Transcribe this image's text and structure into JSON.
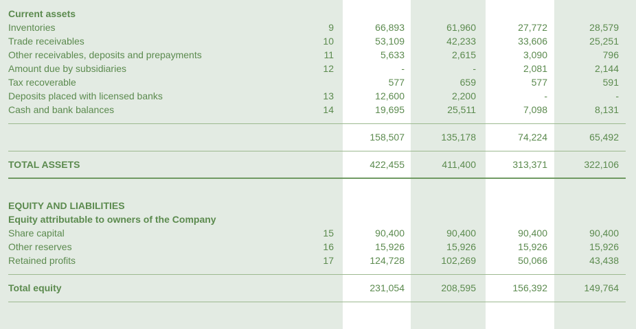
{
  "current_assets": {
    "heading": "Current assets",
    "rows": [
      {
        "label": "Inventories",
        "note": "9",
        "values": [
          "66,893",
          "61,960",
          "27,772",
          "28,579"
        ]
      },
      {
        "label": "Trade receivables",
        "note": "10",
        "values": [
          "53,109",
          "42,233",
          "33,606",
          "25,251"
        ]
      },
      {
        "label": "Other receivables, deposits and prepayments",
        "note": "11",
        "values": [
          "5,633",
          "2,615",
          "3,090",
          "796"
        ]
      },
      {
        "label": "Amount due by subsidiaries",
        "note": "12",
        "values": [
          "-",
          "-",
          "2,081",
          "2,144"
        ]
      },
      {
        "label": "Tax recoverable",
        "note": "",
        "values": [
          "577",
          "659",
          "577",
          "591"
        ]
      },
      {
        "label": "Deposits placed with licensed banks",
        "note": "13",
        "values": [
          "12,600",
          "2,200",
          "-",
          "-"
        ]
      },
      {
        "label": "Cash and bank balances",
        "note": "14",
        "values": [
          "19,695",
          "25,511",
          "7,098",
          "8,131"
        ]
      }
    ],
    "subtotal": [
      "158,507",
      "135,178",
      "74,224",
      "65,492"
    ]
  },
  "total_assets": {
    "label": "TOTAL ASSETS",
    "values": [
      "422,455",
      "411,400",
      "313,371",
      "322,106"
    ]
  },
  "equity": {
    "heading": "EQUITY AND LIABILITIES",
    "subheading": "Equity attributable to owners of the Company",
    "rows": [
      {
        "label": "Share capital",
        "note": "15",
        "values": [
          "90,400",
          "90,400",
          "90,400",
          "90,400"
        ]
      },
      {
        "label": "Other reserves",
        "note": "16",
        "values": [
          "15,926",
          "15,926",
          "15,926",
          "15,926"
        ]
      },
      {
        "label": "Retained profits",
        "note": "17",
        "values": [
          "124,728",
          "102,269",
          "50,066",
          "43,438"
        ]
      }
    ],
    "total": {
      "label": "Total equity",
      "values": [
        "231,054",
        "208,595",
        "156,392",
        "149,764"
      ]
    }
  }
}
